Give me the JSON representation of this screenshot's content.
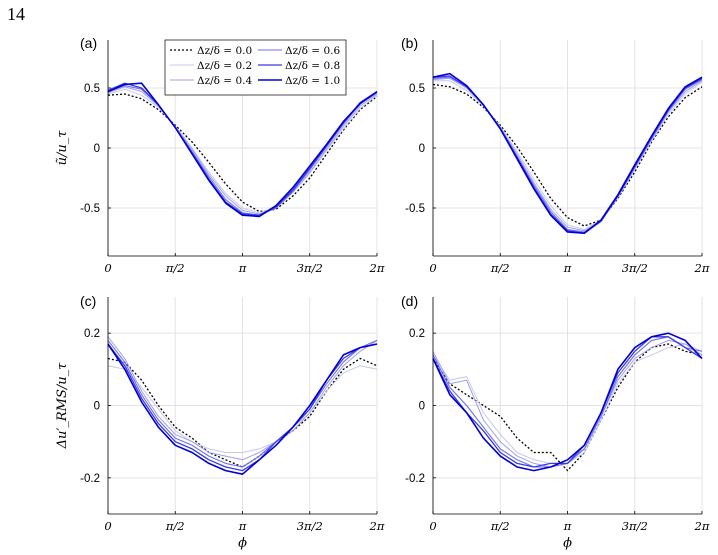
{
  "page_number": "14",
  "colors": [
    "#000000",
    "#c8c8ec",
    "#a0a0ea",
    "#6e6ef0",
    "#3a3ae6",
    "#0000d2"
  ],
  "legend": [
    "Δz/δ = 0.0",
    "Δz/δ = 0.2",
    "Δz/δ = 0.4",
    "Δz/δ = 0.6",
    "Δz/δ = 0.8",
    "Δz/δ = 1.0"
  ],
  "x_tick_labels": [
    "0",
    "π/2",
    "π",
    "3π/2",
    "2π"
  ],
  "chart_data": [
    {
      "panel": "(a)",
      "type": "line",
      "ylabel": "ũ/u_τ",
      "xlabel": "",
      "ylim": [
        -0.9,
        0.9
      ],
      "xlim": [
        0,
        6.2832
      ],
      "y_ticks": [
        0.5,
        0,
        -0.5
      ],
      "y_tick_labels": [
        "0.5",
        "0",
        "-0.5"
      ],
      "x": [
        0,
        0.3927,
        0.7854,
        1.1781,
        1.5708,
        1.9635,
        2.3562,
        2.7489,
        3.1416,
        3.5343,
        3.927,
        4.3197,
        4.7124,
        5.1051,
        5.4978,
        5.8905,
        6.2832
      ],
      "series": [
        {
          "name": "Δz/δ = 0.0",
          "values": [
            0.44,
            0.45,
            0.41,
            0.32,
            0.19,
            0.05,
            -0.12,
            -0.3,
            -0.45,
            -0.53,
            -0.51,
            -0.4,
            -0.25,
            -0.05,
            0.15,
            0.32,
            0.43
          ]
        },
        {
          "name": "Δz/δ = 0.2",
          "values": [
            0.45,
            0.49,
            0.44,
            0.34,
            0.18,
            0.0,
            -0.2,
            -0.38,
            -0.5,
            -0.54,
            -0.49,
            -0.37,
            -0.21,
            -0.02,
            0.16,
            0.33,
            0.44
          ]
        },
        {
          "name": "Δz/δ = 0.4",
          "values": [
            0.46,
            0.51,
            0.47,
            0.35,
            0.18,
            -0.01,
            -0.22,
            -0.4,
            -0.52,
            -0.55,
            -0.5,
            -0.37,
            -0.2,
            -0.01,
            0.18,
            0.35,
            0.45
          ]
        },
        {
          "name": "Δz/δ = 0.6",
          "values": [
            0.47,
            0.52,
            0.49,
            0.36,
            0.17,
            -0.03,
            -0.24,
            -0.43,
            -0.54,
            -0.56,
            -0.5,
            -0.36,
            -0.18,
            0.01,
            0.2,
            0.37,
            0.46
          ]
        },
        {
          "name": "Δz/δ = 0.8",
          "values": [
            0.48,
            0.54,
            0.5,
            0.36,
            0.17,
            -0.04,
            -0.26,
            -0.45,
            -0.55,
            -0.56,
            -0.49,
            -0.35,
            -0.17,
            0.02,
            0.21,
            0.38,
            0.47
          ]
        },
        {
          "name": "Δz/δ = 1.0",
          "values": [
            0.47,
            0.53,
            0.54,
            0.36,
            0.17,
            -0.05,
            -0.27,
            -0.46,
            -0.56,
            -0.57,
            -0.48,
            -0.33,
            -0.15,
            0.03,
            0.22,
            0.37,
            0.47
          ]
        }
      ]
    },
    {
      "panel": "(b)",
      "type": "line",
      "ylabel": "",
      "xlabel": "",
      "ylim": [
        -0.9,
        0.9
      ],
      "xlim": [
        0,
        6.2832
      ],
      "y_ticks": [
        0.5,
        0,
        -0.5
      ],
      "y_tick_labels": [
        "0.5",
        "0",
        "-0.5"
      ],
      "x": [
        0,
        0.3927,
        0.7854,
        1.1781,
        1.5708,
        1.9635,
        2.3562,
        2.7489,
        3.1416,
        3.5343,
        3.927,
        4.3197,
        4.7124,
        5.1051,
        5.4978,
        5.8905,
        6.2832
      ],
      "series": [
        {
          "name": "Δz/δ = 0.0",
          "values": [
            0.53,
            0.51,
            0.45,
            0.34,
            0.19,
            0.01,
            -0.2,
            -0.42,
            -0.58,
            -0.65,
            -0.6,
            -0.42,
            -0.2,
            0.05,
            0.26,
            0.42,
            0.51
          ]
        },
        {
          "name": "Δz/δ = 0.2",
          "values": [
            0.56,
            0.56,
            0.48,
            0.35,
            0.18,
            -0.03,
            -0.26,
            -0.48,
            -0.64,
            -0.68,
            -0.6,
            -0.41,
            -0.18,
            0.06,
            0.28,
            0.45,
            0.55
          ]
        },
        {
          "name": "Δz/δ = 0.4",
          "values": [
            0.57,
            0.58,
            0.5,
            0.36,
            0.17,
            -0.05,
            -0.29,
            -0.51,
            -0.66,
            -0.69,
            -0.61,
            -0.41,
            -0.17,
            0.07,
            0.3,
            0.47,
            0.56
          ]
        },
        {
          "name": "Δz/δ = 0.6",
          "values": [
            0.58,
            0.59,
            0.51,
            0.36,
            0.17,
            -0.07,
            -0.31,
            -0.53,
            -0.68,
            -0.7,
            -0.61,
            -0.4,
            -0.16,
            0.08,
            0.31,
            0.49,
            0.57
          ]
        },
        {
          "name": "Δz/δ = 0.8",
          "values": [
            0.59,
            0.6,
            0.51,
            0.36,
            0.16,
            -0.08,
            -0.33,
            -0.55,
            -0.69,
            -0.71,
            -0.61,
            -0.4,
            -0.15,
            0.09,
            0.32,
            0.5,
            0.58
          ]
        },
        {
          "name": "Δz/δ = 1.0",
          "values": [
            0.59,
            0.62,
            0.52,
            0.36,
            0.16,
            -0.09,
            -0.34,
            -0.56,
            -0.7,
            -0.71,
            -0.6,
            -0.39,
            -0.14,
            0.1,
            0.33,
            0.51,
            0.59
          ]
        }
      ]
    },
    {
      "panel": "(c)",
      "type": "line",
      "ylabel": "Δu′_RMS/u_τ",
      "xlabel": "ϕ",
      "ylim": [
        -0.3,
        0.3
      ],
      "xlim": [
        0,
        6.2832
      ],
      "y_ticks": [
        0.2,
        0,
        -0.2
      ],
      "y_tick_labels": [
        "0.2",
        "0",
        "-0.2"
      ],
      "x": [
        0,
        0.3927,
        0.7854,
        1.1781,
        1.5708,
        1.9635,
        2.3562,
        2.7489,
        3.1416,
        3.5343,
        3.927,
        4.3197,
        4.7124,
        5.1051,
        5.4978,
        5.8905,
        6.2832
      ],
      "series": [
        {
          "name": "Δz/δ = 0.0",
          "values": [
            0.13,
            0.12,
            0.07,
            0.0,
            -0.06,
            -0.09,
            -0.13,
            -0.15,
            -0.17,
            -0.14,
            -0.1,
            -0.07,
            -0.03,
            0.04,
            0.1,
            0.13,
            0.11
          ]
        },
        {
          "name": "Δz/δ = 0.2",
          "values": [
            0.11,
            0.1,
            0.05,
            -0.01,
            -0.07,
            -0.1,
            -0.12,
            -0.13,
            -0.13,
            -0.12,
            -0.1,
            -0.06,
            -0.02,
            0.04,
            0.09,
            0.11,
            0.1
          ]
        },
        {
          "name": "Δz/δ = 0.4",
          "values": [
            0.19,
            0.13,
            0.04,
            -0.03,
            -0.08,
            -0.1,
            -0.13,
            -0.14,
            -0.15,
            -0.13,
            -0.1,
            -0.07,
            -0.02,
            0.05,
            0.11,
            0.15,
            0.18
          ]
        },
        {
          "name": "Δz/δ = 0.6",
          "values": [
            0.18,
            0.12,
            0.03,
            -0.04,
            -0.09,
            -0.11,
            -0.14,
            -0.16,
            -0.17,
            -0.14,
            -0.1,
            -0.06,
            -0.01,
            0.06,
            0.12,
            0.16,
            0.18
          ]
        },
        {
          "name": "Δz/δ = 0.8",
          "values": [
            0.17,
            0.11,
            0.02,
            -0.05,
            -0.1,
            -0.12,
            -0.15,
            -0.17,
            -0.18,
            -0.15,
            -0.1,
            -0.06,
            -0.01,
            0.07,
            0.13,
            0.16,
            0.17
          ]
        },
        {
          "name": "Δz/δ = 1.0",
          "values": [
            0.17,
            0.1,
            0.01,
            -0.06,
            -0.11,
            -0.13,
            -0.16,
            -0.18,
            -0.19,
            -0.15,
            -0.11,
            -0.06,
            0.0,
            0.07,
            0.14,
            0.16,
            0.17
          ]
        }
      ]
    },
    {
      "panel": "(d)",
      "type": "line",
      "ylabel": "",
      "xlabel": "ϕ",
      "ylim": [
        -0.3,
        0.3
      ],
      "xlim": [
        0,
        6.2832
      ],
      "y_ticks": [
        0.2,
        0,
        -0.2
      ],
      "y_tick_labels": [
        "0.2",
        "0",
        "-0.2"
      ],
      "x": [
        0,
        0.3927,
        0.7854,
        1.1781,
        1.5708,
        1.9635,
        2.3562,
        2.7489,
        3.1416,
        3.5343,
        3.927,
        4.3197,
        4.7124,
        5.1051,
        5.4978,
        5.8905,
        6.2832
      ],
      "series": [
        {
          "name": "Δz/δ = 0.0",
          "values": [
            0.13,
            0.06,
            0.03,
            0.0,
            -0.03,
            -0.09,
            -0.13,
            -0.13,
            -0.18,
            -0.13,
            -0.04,
            0.05,
            0.12,
            0.16,
            0.17,
            0.15,
            0.14
          ]
        },
        {
          "name": "Δz/δ = 0.2",
          "values": [
            0.14,
            0.07,
            0.08,
            -0.02,
            -0.08,
            -0.13,
            -0.15,
            -0.16,
            -0.16,
            -0.13,
            -0.04,
            0.06,
            0.12,
            0.14,
            0.16,
            0.17,
            0.15
          ]
        },
        {
          "name": "Δz/δ = 0.4",
          "values": [
            0.15,
            0.06,
            0.07,
            -0.04,
            -0.1,
            -0.14,
            -0.16,
            -0.17,
            -0.15,
            -0.12,
            -0.03,
            0.07,
            0.13,
            0.16,
            0.18,
            0.17,
            0.14
          ]
        },
        {
          "name": "Δz/δ = 0.6",
          "values": [
            0.14,
            0.05,
            0.0,
            -0.06,
            -0.12,
            -0.15,
            -0.17,
            -0.17,
            -0.16,
            -0.12,
            -0.03,
            0.08,
            0.14,
            0.18,
            0.19,
            0.16,
            0.15
          ]
        },
        {
          "name": "Δz/δ = 0.8",
          "values": [
            0.13,
            0.04,
            -0.02,
            -0.07,
            -0.13,
            -0.16,
            -0.17,
            -0.16,
            -0.16,
            -0.11,
            -0.02,
            0.09,
            0.15,
            0.19,
            0.19,
            0.16,
            0.13
          ]
        },
        {
          "name": "Δz/δ = 1.0",
          "values": [
            0.13,
            0.03,
            -0.02,
            -0.09,
            -0.14,
            -0.17,
            -0.18,
            -0.17,
            -0.15,
            -0.11,
            -0.02,
            0.1,
            0.16,
            0.19,
            0.2,
            0.18,
            0.13
          ]
        }
      ]
    }
  ]
}
